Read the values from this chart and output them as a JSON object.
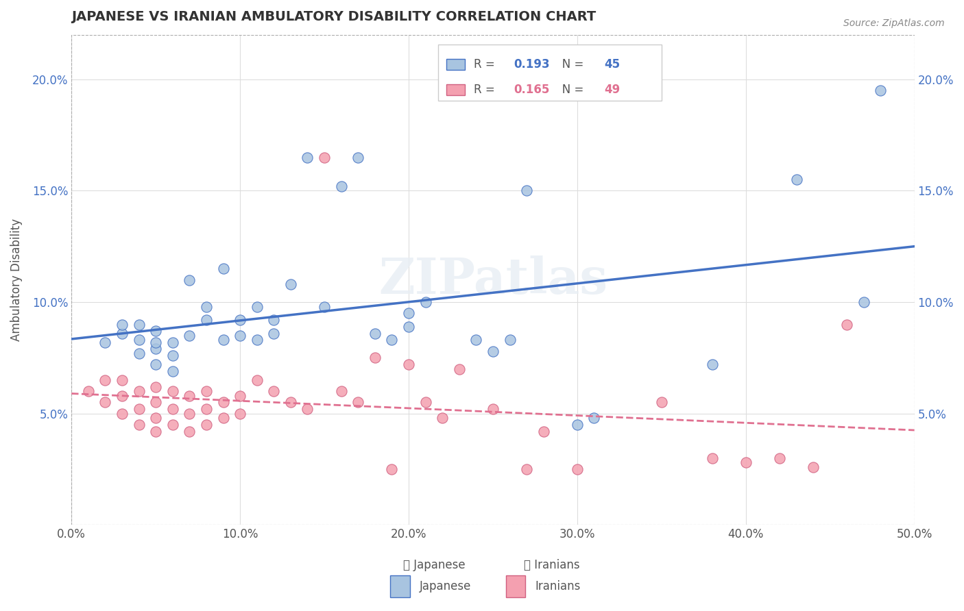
{
  "title": "JAPANESE VS IRANIAN AMBULATORY DISABILITY CORRELATION CHART",
  "source": "Source: ZipAtlas.com",
  "xlabel": "",
  "ylabel": "Ambulatory Disability",
  "xlim": [
    0.0,
    0.5
  ],
  "ylim": [
    0.0,
    0.22
  ],
  "xticks": [
    0.0,
    0.1,
    0.2,
    0.3,
    0.4,
    0.5
  ],
  "xticklabels": [
    "0.0%",
    "10.0%",
    "20.0%",
    "30.0%",
    "40.0%",
    "50.0%"
  ],
  "yticks": [
    0.0,
    0.05,
    0.1,
    0.15,
    0.2
  ],
  "yticklabels": [
    "",
    "5.0%",
    "10.0%",
    "15.0%",
    "20.0%"
  ],
  "japanese_R": 0.193,
  "japanese_N": 45,
  "iranian_R": 0.165,
  "iranian_N": 49,
  "japanese_color": "#a8c4e0",
  "iranian_color": "#f4a0b0",
  "japanese_line_color": "#4472C4",
  "iranian_line_color": "#E07090",
  "watermark": "ZIPatlas",
  "japanese_x": [
    0.02,
    0.03,
    0.03,
    0.04,
    0.04,
    0.04,
    0.05,
    0.05,
    0.05,
    0.05,
    0.06,
    0.06,
    0.06,
    0.07,
    0.07,
    0.08,
    0.08,
    0.09,
    0.09,
    0.1,
    0.1,
    0.11,
    0.11,
    0.12,
    0.12,
    0.13,
    0.14,
    0.15,
    0.16,
    0.17,
    0.18,
    0.19,
    0.2,
    0.2,
    0.21,
    0.24,
    0.25,
    0.26,
    0.27,
    0.3,
    0.31,
    0.38,
    0.43,
    0.47,
    0.48
  ],
  "japanese_y": [
    0.082,
    0.086,
    0.09,
    0.077,
    0.083,
    0.09,
    0.072,
    0.079,
    0.082,
    0.087,
    0.069,
    0.076,
    0.082,
    0.085,
    0.11,
    0.092,
    0.098,
    0.083,
    0.115,
    0.085,
    0.092,
    0.083,
    0.098,
    0.086,
    0.092,
    0.108,
    0.165,
    0.098,
    0.152,
    0.165,
    0.086,
    0.083,
    0.089,
    0.095,
    0.1,
    0.083,
    0.078,
    0.083,
    0.15,
    0.045,
    0.048,
    0.072,
    0.155,
    0.1,
    0.195
  ],
  "iranian_x": [
    0.01,
    0.02,
    0.02,
    0.03,
    0.03,
    0.03,
    0.04,
    0.04,
    0.04,
    0.05,
    0.05,
    0.05,
    0.05,
    0.06,
    0.06,
    0.06,
    0.07,
    0.07,
    0.07,
    0.08,
    0.08,
    0.08,
    0.09,
    0.09,
    0.1,
    0.1,
    0.11,
    0.12,
    0.13,
    0.14,
    0.15,
    0.16,
    0.17,
    0.18,
    0.19,
    0.2,
    0.21,
    0.22,
    0.23,
    0.25,
    0.27,
    0.28,
    0.3,
    0.35,
    0.38,
    0.4,
    0.42,
    0.44,
    0.46
  ],
  "iranian_y": [
    0.06,
    0.055,
    0.065,
    0.05,
    0.058,
    0.065,
    0.045,
    0.052,
    0.06,
    0.042,
    0.048,
    0.055,
    0.062,
    0.045,
    0.052,
    0.06,
    0.042,
    0.05,
    0.058,
    0.045,
    0.052,
    0.06,
    0.048,
    0.055,
    0.05,
    0.058,
    0.065,
    0.06,
    0.055,
    0.052,
    0.165,
    0.06,
    0.055,
    0.075,
    0.025,
    0.072,
    0.055,
    0.048,
    0.07,
    0.052,
    0.025,
    0.042,
    0.025,
    0.055,
    0.03,
    0.028,
    0.03,
    0.026,
    0.09
  ]
}
